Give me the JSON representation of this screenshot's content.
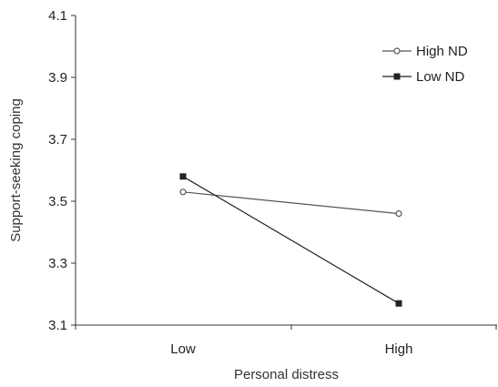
{
  "chart_data": {
    "type": "line",
    "title": "",
    "xlabel": "Personal distress",
    "ylabel": "Support-seeking coping",
    "categories": [
      "Low",
      "High"
    ],
    "ylim": [
      3.1,
      4.1
    ],
    "yticks": [
      "3.1",
      "3.3",
      "3.5",
      "3.7",
      "3.9",
      "4.1"
    ],
    "grid": false,
    "legend_position": "top-right",
    "series": [
      {
        "name": "High ND",
        "values": [
          3.53,
          3.46
        ],
        "marker": "open-circle",
        "color": "#555555"
      },
      {
        "name": "Low ND",
        "values": [
          3.58,
          3.17
        ],
        "marker": "filled-square",
        "color": "#222222"
      }
    ]
  }
}
